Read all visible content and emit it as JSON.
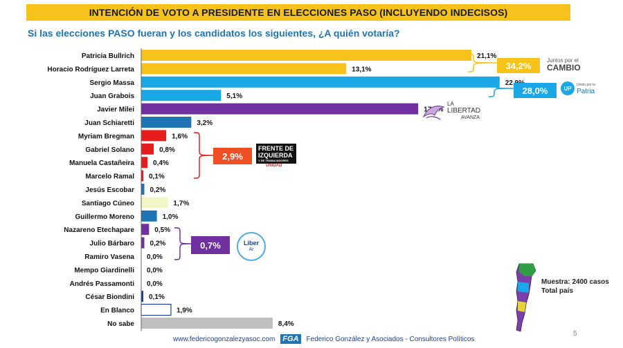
{
  "title": "INTENCIÓN DE VOTO A PRESIDENTE EN ELECCIONES PASO (INCLUYENDO INDECISOS)",
  "subtitle": "Si las elecciones PASO fueran y los candidatos los siguientes, ¿A quién votaría?",
  "chart_data": {
    "type": "bar",
    "orientation": "horizontal",
    "categories": [
      "Patricia Bullrich",
      "Horacio Rodríguez Larreta",
      "Sergio Massa",
      "Juan Grabois",
      "Javier Milei",
      "Juan Schiaretti",
      "Myriam Bregman",
      "Gabriel Solano",
      "Manuela Castañeira",
      "Marcelo Ramal",
      "Jesús Escobar",
      "Santiago Cúneo",
      "Guillermo Moreno",
      "Nazareno Etechapare",
      "Julio Bárbaro",
      "Ramiro Vasena",
      "Mempo Giardinelli",
      "Andrés Passamonti",
      "César Biondini",
      "En Blanco",
      "No sabe"
    ],
    "values": [
      21.1,
      13.1,
      22.9,
      5.1,
      17.7,
      3.2,
      1.6,
      0.8,
      0.4,
      0.1,
      0.2,
      1.7,
      1.0,
      0.5,
      0.2,
      0.0,
      0.0,
      0.0,
      0.1,
      1.9,
      8.4
    ],
    "labels": [
      "21,1%",
      "13,1%",
      "22,9%",
      "5,1%",
      "17,7%",
      "3,2%",
      "1,6%",
      "0,8%",
      "0,4%",
      "0,1%",
      "0,2%",
      "1,7%",
      "1,0%",
      "0,5%",
      "0,2%",
      "0,0%",
      "0,0%",
      "0,0%",
      "0,1%",
      "1,9%",
      "8,4%"
    ],
    "colors": [
      "#F7C21A",
      "#F7C21A",
      "#1AA7E8",
      "#1AA7E8",
      "#7030A0",
      "#1F74B5",
      "#E81C1C",
      "#E81C1C",
      "#E81C1C",
      "#E81C1C",
      "#1F74B5",
      "#F2F5C4",
      "#1F74B5",
      "#7030A0",
      "#7030A0",
      "#7030A0",
      "#1F74B5",
      "#1F74B5",
      "#1F3F8F",
      "#FFFFFF",
      "#BFBFBF"
    ],
    "outlined": [
      false,
      false,
      false,
      false,
      false,
      false,
      false,
      false,
      false,
      false,
      false,
      false,
      false,
      false,
      false,
      false,
      false,
      false,
      false,
      true,
      false
    ],
    "xlim": [
      0,
      23
    ]
  },
  "groups": [
    {
      "value": "34,2%",
      "color": "#F7C21A",
      "logo": "Juntos por el CAMBIO"
    },
    {
      "value": "28,0%",
      "color": "#1AA7E8",
      "logo": "Patria"
    },
    {
      "value": "2,9%",
      "color": "#F04E23",
      "logo": "FRENTE DE IZQUIERDA UNIDAD"
    },
    {
      "value": "0,7%",
      "color": "#7030A0",
      "logo": "Liber Ar"
    }
  ],
  "logos": {
    "jxc_line1": "Juntos por el",
    "jxc_line2": "CAMBIO",
    "udp_badge": "UP",
    "udp_small": "Unión por la",
    "udp_big": "Patria",
    "lla_line1": "LA",
    "lla_line2": "LIBERTAD",
    "lla_line3": "AVANZA",
    "fit_line1": "FRENTE DE",
    "fit_line2": "IZQUIERDA",
    "fit_line3": "Y DE TRABAJADORES",
    "fit_line4": "UNIDAD",
    "liber_line1": "Liber",
    "liber_line2": "Ar"
  },
  "sample": {
    "line1": "Muestra: 2400 casos",
    "line2": "Total país"
  },
  "page_number": "5",
  "footer": {
    "url": "www.federicogonzalezyasoc.com",
    "badge": "FGA",
    "company": "Federico González y Asociados - Consultores Políticos"
  }
}
